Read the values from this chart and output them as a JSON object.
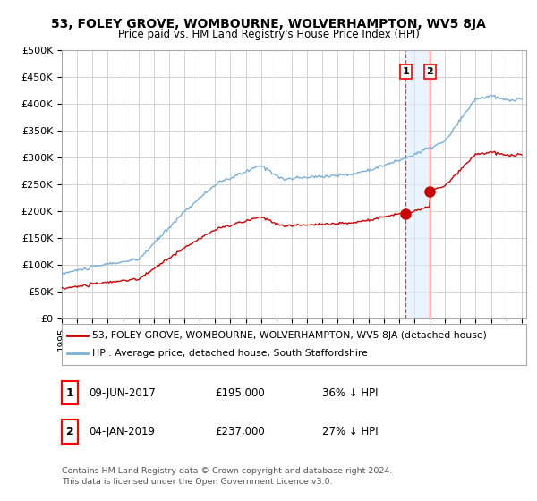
{
  "title": "53, FOLEY GROVE, WOMBOURNE, WOLVERHAMPTON, WV5 8JA",
  "subtitle": "Price paid vs. HM Land Registry's House Price Index (HPI)",
  "ylim": [
    0,
    500000
  ],
  "yticks": [
    0,
    50000,
    100000,
    150000,
    200000,
    250000,
    300000,
    350000,
    400000,
    450000,
    500000
  ],
  "ytick_labels": [
    "£0",
    "£50K",
    "£100K",
    "£150K",
    "£200K",
    "£250K",
    "£300K",
    "£350K",
    "£400K",
    "£450K",
    "£500K"
  ],
  "xlim_start": 1995.0,
  "xlim_end": 2025.3,
  "hpi_color": "#7ab0d8",
  "price_color": "#cc0000",
  "transaction1_date": 2017.44,
  "transaction1_price": 195000,
  "transaction2_date": 2019.01,
  "transaction2_price": 237000,
  "legend_label1": "53, FOLEY GROVE, WOMBOURNE, WOLVERHAMPTON, WV5 8JA (detached house)",
  "legend_label2": "HPI: Average price, detached house, South Staffordshire",
  "annotation1_label": "1",
  "annotation2_label": "2",
  "transaction1_text": "09-JUN-2017",
  "transaction1_amount": "£195,000",
  "transaction1_hpi": "36% ↓ HPI",
  "transaction2_text": "04-JAN-2019",
  "transaction2_amount": "£237,000",
  "transaction2_hpi": "27% ↓ HPI",
  "footer": "Contains HM Land Registry data © Crown copyright and database right 2024.\nThis data is licensed under the Open Government Licence v3.0.",
  "background_color": "#ffffff",
  "plot_bg_color": "#ffffff",
  "grid_color": "#cccccc",
  "shade_color": "#ddeeff"
}
